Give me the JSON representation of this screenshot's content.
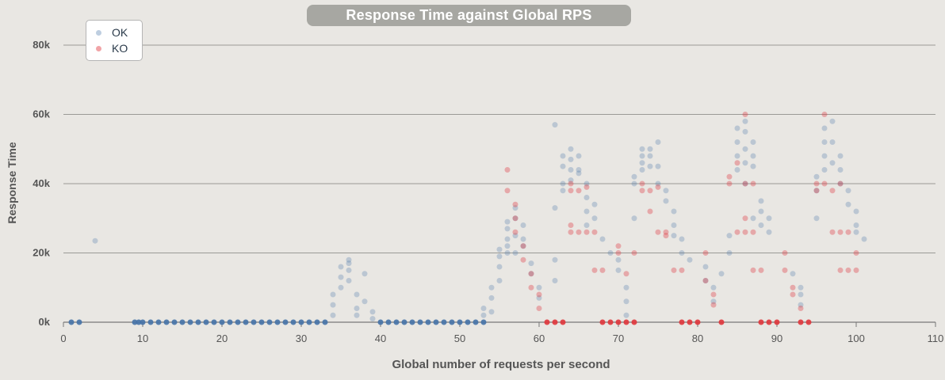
{
  "chart_data": {
    "type": "scatter",
    "title": "Response Time against Global RPS",
    "xlabel": "Global number of requests per second",
    "ylabel": "Response Time",
    "xlim": [
      0,
      110
    ],
    "ylim": [
      0,
      80000
    ],
    "x_ticks": [
      "0",
      "10",
      "20",
      "30",
      "40",
      "50",
      "60",
      "70",
      "80",
      "90",
      "100",
      "110"
    ],
    "y_ticks": [
      "0k",
      "20k",
      "40k",
      "60k",
      "80k"
    ],
    "y_tick_values": [
      0,
      20000,
      40000,
      60000,
      80000
    ],
    "x_tick_values": [
      0,
      10,
      20,
      30,
      40,
      50,
      60,
      70,
      80,
      90,
      100,
      110
    ],
    "grid": "horizontal",
    "legend_position": "top-left",
    "series": [
      {
        "name": "OK",
        "color": "#4572a7",
        "points": [
          [
            1,
            0
          ],
          [
            2,
            0
          ],
          [
            4,
            23500
          ],
          [
            9,
            0
          ],
          [
            9.5,
            0
          ],
          [
            10,
            0
          ],
          [
            11,
            0
          ],
          [
            12,
            0
          ],
          [
            13,
            0
          ],
          [
            14,
            0
          ],
          [
            15,
            0
          ],
          [
            16,
            0
          ],
          [
            17,
            0
          ],
          [
            18,
            0
          ],
          [
            19,
            0
          ],
          [
            20,
            0
          ],
          [
            21,
            0
          ],
          [
            22,
            0
          ],
          [
            23,
            0
          ],
          [
            24,
            0
          ],
          [
            25,
            0
          ],
          [
            26,
            0
          ],
          [
            27,
            0
          ],
          [
            28,
            0
          ],
          [
            29,
            0
          ],
          [
            30,
            0
          ],
          [
            31,
            0
          ],
          [
            32,
            0
          ],
          [
            33,
            0
          ],
          [
            34,
            2000
          ],
          [
            34,
            5000
          ],
          [
            34,
            8000
          ],
          [
            35,
            10000
          ],
          [
            35,
            13000
          ],
          [
            35,
            16000
          ],
          [
            36,
            15000
          ],
          [
            36,
            17000
          ],
          [
            36,
            18000
          ],
          [
            36,
            12000
          ],
          [
            37,
            8000
          ],
          [
            37,
            4000
          ],
          [
            37,
            2000
          ],
          [
            38,
            14000
          ],
          [
            38,
            6000
          ],
          [
            39,
            3000
          ],
          [
            39,
            1000
          ],
          [
            40,
            0
          ],
          [
            41,
            0
          ],
          [
            42,
            0
          ],
          [
            43,
            0
          ],
          [
            44,
            0
          ],
          [
            45,
            0
          ],
          [
            46,
            0
          ],
          [
            47,
            0
          ],
          [
            48,
            0
          ],
          [
            49,
            0
          ],
          [
            50,
            0
          ],
          [
            51,
            0
          ],
          [
            52,
            0
          ],
          [
            53,
            0
          ],
          [
            53,
            2000
          ],
          [
            53,
            4000
          ],
          [
            54,
            3000
          ],
          [
            54,
            7000
          ],
          [
            54,
            10000
          ],
          [
            55,
            12000
          ],
          [
            55,
            16000
          ],
          [
            55,
            19000
          ],
          [
            55,
            21000
          ],
          [
            56,
            20000
          ],
          [
            56,
            24000
          ],
          [
            56,
            27000
          ],
          [
            56,
            29000
          ],
          [
            56,
            22000
          ],
          [
            57,
            25000
          ],
          [
            57,
            30000
          ],
          [
            57,
            33000
          ],
          [
            57,
            20000
          ],
          [
            58,
            28000
          ],
          [
            58,
            24000
          ],
          [
            58,
            22000
          ],
          [
            59,
            17000
          ],
          [
            59,
            14000
          ],
          [
            60,
            10000
          ],
          [
            60,
            7000
          ],
          [
            62,
            57000
          ],
          [
            62,
            33000
          ],
          [
            62,
            18000
          ],
          [
            62,
            12000
          ],
          [
            63,
            48000
          ],
          [
            63,
            45000
          ],
          [
            63,
            40000
          ],
          [
            63,
            38000
          ],
          [
            64,
            50000
          ],
          [
            64,
            47000
          ],
          [
            64,
            44000
          ],
          [
            64,
            41000
          ],
          [
            65,
            48000
          ],
          [
            65,
            44000
          ],
          [
            65,
            43000
          ],
          [
            66,
            40000
          ],
          [
            66,
            36000
          ],
          [
            66,
            32000
          ],
          [
            66,
            28000
          ],
          [
            67,
            34000
          ],
          [
            67,
            30000
          ],
          [
            68,
            24000
          ],
          [
            69,
            20000
          ],
          [
            70,
            18000
          ],
          [
            70,
            15000
          ],
          [
            71,
            10000
          ],
          [
            71,
            6000
          ],
          [
            71,
            2000
          ],
          [
            72,
            40000
          ],
          [
            72,
            42000
          ],
          [
            72,
            30000
          ],
          [
            73,
            44000
          ],
          [
            73,
            46000
          ],
          [
            73,
            48000
          ],
          [
            73,
            50000
          ],
          [
            74,
            50000
          ],
          [
            74,
            48000
          ],
          [
            74,
            45000
          ],
          [
            75,
            45000
          ],
          [
            75,
            52000
          ],
          [
            75,
            40000
          ],
          [
            76,
            38000
          ],
          [
            76,
            35000
          ],
          [
            77,
            32000
          ],
          [
            77,
            28000
          ],
          [
            77,
            25000
          ],
          [
            78,
            24000
          ],
          [
            78,
            20000
          ],
          [
            79,
            18000
          ],
          [
            81,
            16000
          ],
          [
            81,
            12000
          ],
          [
            82,
            10000
          ],
          [
            82,
            6000
          ],
          [
            83,
            14000
          ],
          [
            84,
            20000
          ],
          [
            84,
            25000
          ],
          [
            85,
            44000
          ],
          [
            85,
            48000
          ],
          [
            85,
            52000
          ],
          [
            85,
            56000
          ],
          [
            86,
            46000
          ],
          [
            86,
            50000
          ],
          [
            86,
            55000
          ],
          [
            86,
            58000
          ],
          [
            86,
            40000
          ],
          [
            87,
            52000
          ],
          [
            87,
            48000
          ],
          [
            87,
            45000
          ],
          [
            87,
            30000
          ],
          [
            88,
            35000
          ],
          [
            88,
            32000
          ],
          [
            88,
            28000
          ],
          [
            89,
            30000
          ],
          [
            89,
            26000
          ],
          [
            92,
            14000
          ],
          [
            93,
            10000
          ],
          [
            93,
            8000
          ],
          [
            93,
            5000
          ],
          [
            95,
            30000
          ],
          [
            95,
            38000
          ],
          [
            95,
            42000
          ],
          [
            96,
            44000
          ],
          [
            96,
            48000
          ],
          [
            96,
            52000
          ],
          [
            96,
            56000
          ],
          [
            97,
            58000
          ],
          [
            97,
            52000
          ],
          [
            97,
            46000
          ],
          [
            98,
            48000
          ],
          [
            98,
            44000
          ],
          [
            98,
            40000
          ],
          [
            99,
            38000
          ],
          [
            99,
            34000
          ],
          [
            100,
            28000
          ],
          [
            100,
            26000
          ],
          [
            100,
            32000
          ],
          [
            101,
            24000
          ]
        ]
      },
      {
        "name": "KO",
        "color": "#e0353b",
        "points": [
          [
            56,
            44000
          ],
          [
            56,
            38000
          ],
          [
            57,
            34000
          ],
          [
            57,
            30000
          ],
          [
            57,
            26000
          ],
          [
            58,
            22000
          ],
          [
            58,
            18000
          ],
          [
            59,
            14000
          ],
          [
            59,
            10000
          ],
          [
            60,
            8000
          ],
          [
            60,
            4000
          ],
          [
            61,
            0
          ],
          [
            62,
            0
          ],
          [
            63,
            0
          ],
          [
            64,
            40000
          ],
          [
            64,
            38000
          ],
          [
            64,
            28000
          ],
          [
            64,
            26000
          ],
          [
            65,
            26000
          ],
          [
            65,
            38000
          ],
          [
            66,
            26000
          ],
          [
            66,
            39000
          ],
          [
            67,
            26000
          ],
          [
            67,
            15000
          ],
          [
            68,
            15000
          ],
          [
            68,
            0
          ],
          [
            69,
            0
          ],
          [
            70,
            0
          ],
          [
            70,
            20000
          ],
          [
            70,
            22000
          ],
          [
            71,
            0
          ],
          [
            71,
            14000
          ],
          [
            72,
            0
          ],
          [
            72,
            20000
          ],
          [
            73,
            40000
          ],
          [
            73,
            38000
          ],
          [
            74,
            38000
          ],
          [
            74,
            32000
          ],
          [
            75,
            26000
          ],
          [
            75,
            39000
          ],
          [
            76,
            26000
          ],
          [
            76,
            25000
          ],
          [
            77,
            15000
          ],
          [
            78,
            15000
          ],
          [
            78,
            0
          ],
          [
            79,
            0
          ],
          [
            80,
            0
          ],
          [
            81,
            12000
          ],
          [
            81,
            20000
          ],
          [
            82,
            8000
          ],
          [
            82,
            5000
          ],
          [
            83,
            0
          ],
          [
            84,
            40000
          ],
          [
            84,
            42000
          ],
          [
            85,
            26000
          ],
          [
            85,
            46000
          ],
          [
            86,
            60000
          ],
          [
            86,
            26000
          ],
          [
            86,
            40000
          ],
          [
            86,
            30000
          ],
          [
            87,
            26000
          ],
          [
            87,
            40000
          ],
          [
            87,
            15000
          ],
          [
            88,
            15000
          ],
          [
            88,
            0
          ],
          [
            89,
            0
          ],
          [
            90,
            0
          ],
          [
            91,
            20000
          ],
          [
            91,
            15000
          ],
          [
            92,
            10000
          ],
          [
            92,
            8000
          ],
          [
            93,
            0
          ],
          [
            93,
            4000
          ],
          [
            94,
            0
          ],
          [
            95,
            40000
          ],
          [
            95,
            38000
          ],
          [
            96,
            40000
          ],
          [
            96,
            60000
          ],
          [
            97,
            38000
          ],
          [
            97,
            26000
          ],
          [
            98,
            40000
          ],
          [
            98,
            26000
          ],
          [
            98,
            15000
          ],
          [
            99,
            26000
          ],
          [
            99,
            15000
          ],
          [
            100,
            15000
          ],
          [
            100,
            20000
          ]
        ]
      }
    ]
  }
}
